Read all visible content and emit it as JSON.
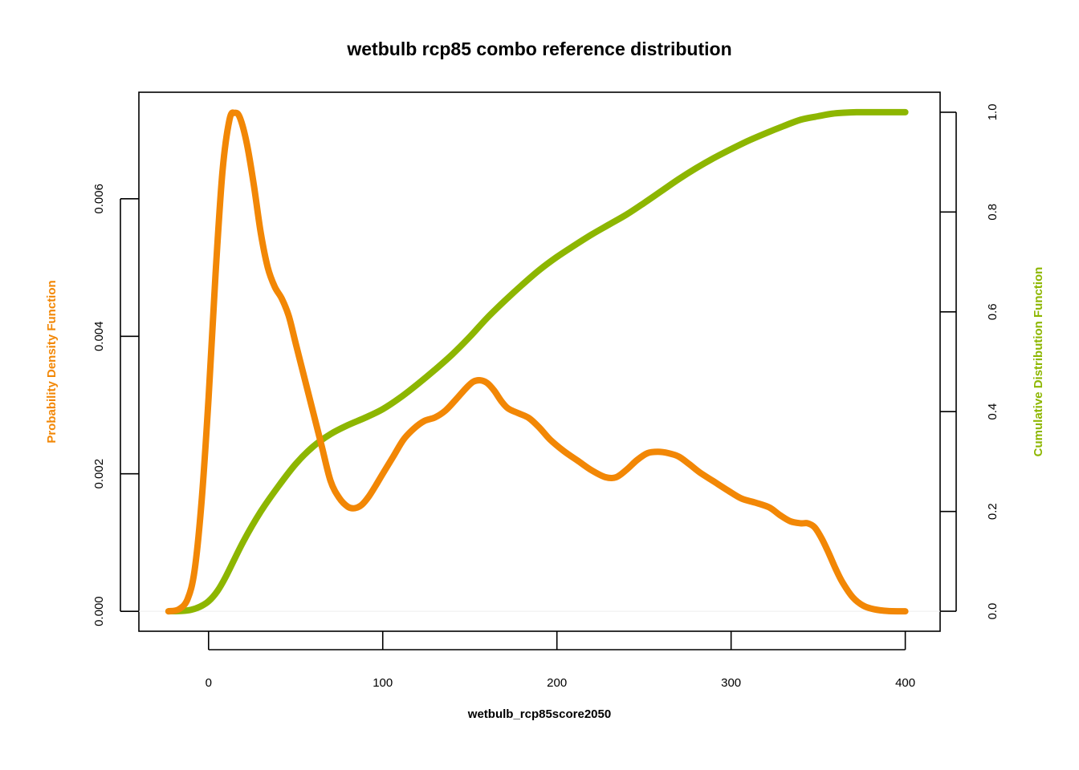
{
  "chart_data": {
    "type": "line",
    "title": "wetbulb rcp85 combo reference distribution",
    "xlabel": "wetbulb_rcp85score2050",
    "ylabel_left": "Probability Density Function",
    "ylabel_right": "Cumulative Distribution Function",
    "xlim": [
      -40,
      420
    ],
    "ylim_left": [
      -0.00029,
      0.00755
    ],
    "ylim_right": [
      -0.04,
      1.04
    ],
    "x_ticks": [
      0,
      100,
      200,
      300,
      400
    ],
    "x_tick_labels": [
      "0",
      "100",
      "200",
      "300",
      "400"
    ],
    "y_left_ticks": [
      0,
      0.002,
      0.004,
      0.006
    ],
    "y_left_tick_labels": [
      "0.000",
      "0.002",
      "0.004",
      "0.006"
    ],
    "y_right_ticks": [
      0,
      0.2,
      0.4,
      0.6,
      0.8,
      1.0
    ],
    "y_right_tick_labels": [
      "0.0",
      "0.2",
      "0.4",
      "0.6",
      "0.8",
      "1.0"
    ],
    "grid": false,
    "series": [
      {
        "name": "Probability Density Function",
        "axis": "left",
        "color": "#F28705",
        "x": [
          -23,
          -17,
          -12,
          -8,
          -4,
          0,
          4,
          8,
          12,
          15,
          18,
          22,
          26,
          30,
          34,
          38,
          42,
          46,
          50,
          55,
          60,
          65,
          70,
          75,
          80,
          84,
          88,
          92,
          96,
          100,
          106,
          112,
          118,
          124,
          130,
          136,
          142,
          148,
          152,
          156,
          160,
          164,
          168,
          172,
          178,
          184,
          190,
          196,
          204,
          212,
          220,
          228,
          234,
          240,
          246,
          252,
          258,
          264,
          270,
          276,
          282,
          290,
          298,
          306,
          314,
          322,
          328,
          334,
          340,
          344,
          348,
          352,
          356,
          360,
          364,
          370,
          376,
          382,
          390,
          400
        ],
        "y": [
          0,
          3e-05,
          0.00018,
          0.0006,
          0.0016,
          0.0031,
          0.0049,
          0.0064,
          0.00715,
          0.00725,
          0.00718,
          0.0068,
          0.0062,
          0.0055,
          0.005,
          0.00472,
          0.00455,
          0.0043,
          0.0039,
          0.0034,
          0.0029,
          0.0024,
          0.0019,
          0.00165,
          0.00152,
          0.0015,
          0.00155,
          0.00167,
          0.00183,
          0.002,
          0.00225,
          0.0025,
          0.00266,
          0.00277,
          0.00282,
          0.00292,
          0.00308,
          0.00325,
          0.00334,
          0.00336,
          0.00332,
          0.00321,
          0.00306,
          0.00295,
          0.00288,
          0.00281,
          0.00267,
          0.0025,
          0.00233,
          0.00219,
          0.00205,
          0.00195,
          0.00195,
          0.00206,
          0.0022,
          0.0023,
          0.00232,
          0.0023,
          0.00225,
          0.00214,
          0.00202,
          0.00189,
          0.00176,
          0.00164,
          0.00158,
          0.00151,
          0.0014,
          0.00131,
          0.00128,
          0.00128,
          0.00122,
          0.00106,
          0.00085,
          0.00062,
          0.00042,
          0.0002,
          8e-05,
          3e-05,
          5e-06,
          0
        ]
      },
      {
        "name": "Cumulative Distribution Function",
        "axis": "right",
        "color": "#8DB600",
        "x": [
          -23,
          -15,
          -10,
          -5,
          0,
          5,
          10,
          20,
          30,
          40,
          50,
          60,
          70,
          80,
          90,
          100,
          110,
          120,
          130,
          140,
          150,
          160,
          170,
          180,
          190,
          200,
          210,
          220,
          230,
          240,
          250,
          260,
          270,
          280,
          290,
          300,
          310,
          320,
          330,
          340,
          350,
          358,
          365,
          372,
          380,
          390,
          400
        ],
        "y": [
          0,
          0.0008,
          0.003,
          0.009,
          0.02,
          0.04,
          0.07,
          0.14,
          0.2,
          0.25,
          0.295,
          0.33,
          0.355,
          0.373,
          0.388,
          0.405,
          0.428,
          0.455,
          0.484,
          0.515,
          0.55,
          0.588,
          0.622,
          0.654,
          0.684,
          0.71,
          0.733,
          0.755,
          0.775,
          0.795,
          0.818,
          0.842,
          0.866,
          0.888,
          0.908,
          0.926,
          0.943,
          0.958,
          0.972,
          0.985,
          0.992,
          0.997,
          0.999,
          1.0,
          1.0,
          1.0,
          1.0
        ]
      }
    ]
  }
}
